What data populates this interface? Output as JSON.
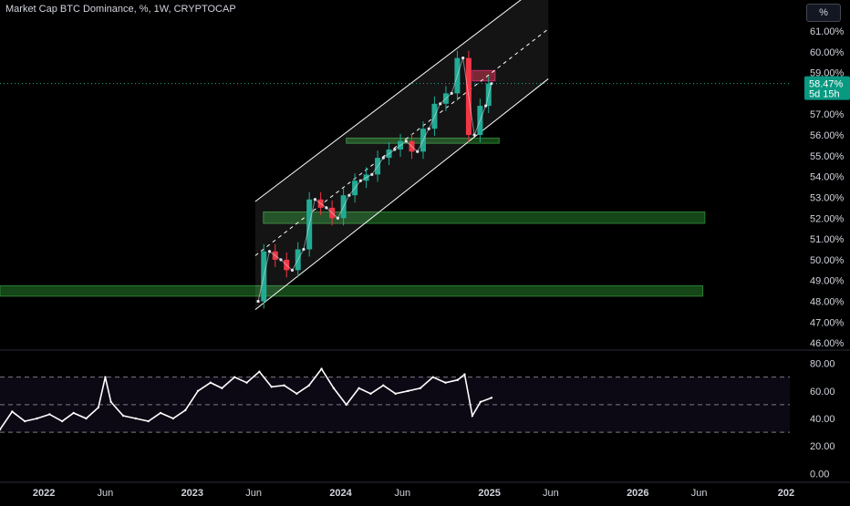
{
  "header": {
    "title": "Market Cap BTC Dominance, %, 1W, CRYPTOCAP",
    "unit_button": "%"
  },
  "colors": {
    "background": "#000000",
    "up": "#22ab94",
    "down": "#f23645",
    "zone_green": "#1b5e20",
    "zone_red": "#8b1d2c",
    "rsi_line": "#ffffff",
    "channel": "#ffffff",
    "price_label_bg": "#089981"
  },
  "last_price": {
    "value": "58.47%",
    "countdown": "5d 15h"
  },
  "chart_data": [
    {
      "type": "line",
      "title": "Market Cap BTC Dominance, %, 1W, CRYPTOCAP",
      "y_ticks": [
        "61.00%",
        "60.00%",
        "59.00%",
        "58.00%",
        "57.00%",
        "56.00%",
        "55.00%",
        "54.00%",
        "53.00%",
        "52.00%",
        "51.00%",
        "50.00%",
        "49.00%",
        "48.00%",
        "47.00%",
        "46.00%"
      ],
      "ylim": [
        45.7,
        61.7
      ],
      "x_ticks": [
        "2022",
        "Jun",
        "2023",
        "Jun",
        "2024",
        "Jun",
        "2025",
        "Jun",
        "2026",
        "Jun",
        "202"
      ],
      "x_tick_dates": [
        "2022-01-01",
        "2022-06-01",
        "2023-01-01",
        "2023-06-01",
        "2024-01-01",
        "2024-06-01",
        "2025-01-01",
        "2025-06-01",
        "2026-01-01",
        "2026-06-01",
        "2027-01-01"
      ],
      "x_range": [
        "2021-09-15",
        "2027-01-10"
      ],
      "series": [
        {
          "dates": [
            "2023-06-12",
            "2023-07-10",
            "2023-08-07",
            "2023-09-04",
            "2023-10-02",
            "2023-10-30",
            "2023-11-27",
            "2023-12-25",
            "2024-01-22",
            "2024-02-19",
            "2024-03-18",
            "2024-04-15",
            "2024-05-13",
            "2024-06-10",
            "2024-07-08",
            "2024-08-05",
            "2024-09-02",
            "2024-09-30",
            "2024-10-28",
            "2024-11-25",
            "2024-12-23",
            "2025-01-06"
          ],
          "values": [
            48.0,
            50.4,
            50.0,
            49.5,
            50.5,
            52.9,
            52.5,
            52.0,
            53.1,
            53.8,
            54.1,
            54.9,
            55.3,
            55.7,
            55.2,
            56.3,
            57.5,
            58.0,
            59.7,
            56.0,
            57.4,
            58.47
          ]
        }
      ],
      "channel": {
        "lower_start": [
          "2023-06-05",
          47.6
        ],
        "lower_end": [
          "2025-05-26",
          58.7
        ],
        "upper_start": [
          "2023-06-05",
          52.8
        ],
        "upper_end": [
          "2025-05-26",
          63.5
        ]
      },
      "zones": [
        {
          "y": [
            55.6,
            55.85
          ],
          "x": [
            "2024-01-15",
            "2025-01-25"
          ],
          "color": "green"
        },
        {
          "y": [
            51.75,
            52.3
          ],
          "x": [
            "2023-06-25",
            "2026-06-15"
          ],
          "color": "green"
        },
        {
          "y": [
            48.25,
            48.75
          ],
          "x": [
            "2021-09-15",
            "2026-06-10"
          ],
          "color": "green"
        },
        {
          "y": [
            58.6,
            59.1
          ],
          "x": [
            "2024-11-20",
            "2025-01-15"
          ],
          "color": "red"
        }
      ],
      "grid": false
    },
    {
      "type": "line",
      "y_ticks": [
        "80.00",
        "60.00",
        "40.00",
        "20.00",
        "0.00"
      ],
      "ylim": [
        -5,
        87
      ],
      "levels": [
        70,
        50,
        30
      ],
      "series": [
        {
          "dates": [
            "2021-09-15",
            "2021-10-15",
            "2021-11-15",
            "2021-12-15",
            "2022-01-15",
            "2022-02-15",
            "2022-03-15",
            "2022-04-15",
            "2022-05-15",
            "2022-06-01",
            "2022-06-15",
            "2022-07-15",
            "2022-08-15",
            "2022-09-15",
            "2022-10-15",
            "2022-11-15",
            "2022-12-15",
            "2023-01-15",
            "2023-02-15",
            "2023-03-15",
            "2023-04-15",
            "2023-05-15",
            "2023-06-15",
            "2023-07-15",
            "2023-08-15",
            "2023-09-15",
            "2023-10-15",
            "2023-11-15",
            "2023-12-15",
            "2024-01-15",
            "2024-02-15",
            "2024-03-15",
            "2024-04-15",
            "2024-05-15",
            "2024-06-15",
            "2024-07-15",
            "2024-08-15",
            "2024-09-15",
            "2024-10-15",
            "2024-11-01",
            "2024-11-20",
            "2024-12-10",
            "2025-01-06"
          ],
          "values": [
            32,
            45,
            38,
            40,
            43,
            38,
            44,
            40,
            48,
            70,
            52,
            42,
            40,
            38,
            44,
            40,
            46,
            60,
            66,
            62,
            70,
            66,
            74,
            63,
            64,
            58,
            64,
            76,
            62,
            50,
            62,
            58,
            64,
            58,
            60,
            62,
            70,
            66,
            68,
            72,
            42,
            52,
            55
          ]
        }
      ]
    }
  ],
  "time_axis": {
    "labels": [
      "2022",
      "Jun",
      "2023",
      "Jun",
      "2024",
      "Jun",
      "2025",
      "Jun",
      "2026",
      "Jun",
      "202"
    ]
  }
}
